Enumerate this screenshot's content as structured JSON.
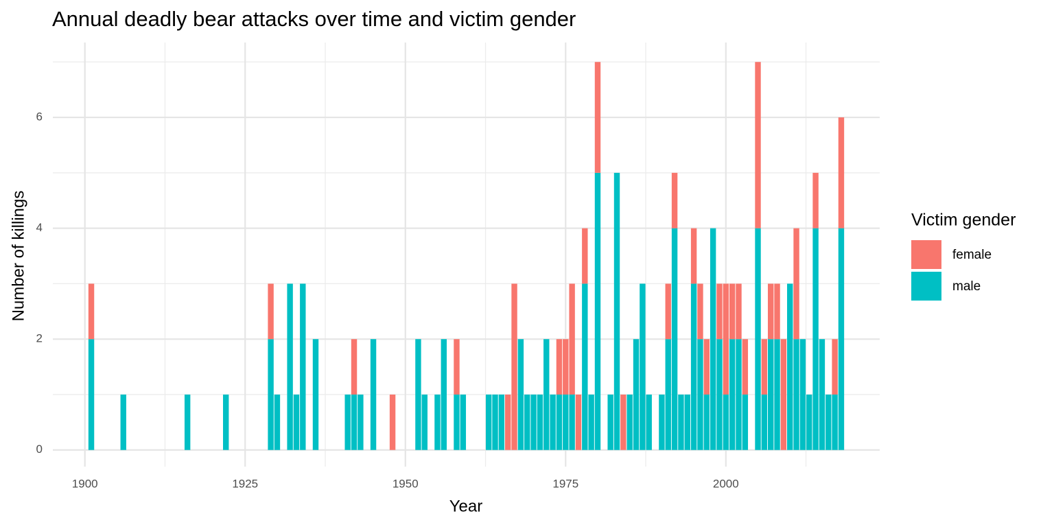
{
  "chart_data": {
    "type": "stacked_bar",
    "title": "Annual deadly bear attacks over time and victim gender",
    "x_label": "Year",
    "y_label": "Number of killings",
    "legend_title": "Victim gender",
    "x": [
      1901,
      1906,
      1916,
      1922,
      1929,
      1930,
      1932,
      1933,
      1934,
      1936,
      1941,
      1942,
      1943,
      1945,
      1948,
      1952,
      1953,
      1955,
      1956,
      1958,
      1959,
      1963,
      1964,
      1965,
      1966,
      1967,
      1968,
      1969,
      1970,
      1971,
      1972,
      1973,
      1974,
      1975,
      1976,
      1977,
      1978,
      1979,
      1980,
      1982,
      1983,
      1984,
      1985,
      1986,
      1987,
      1988,
      1990,
      1991,
      1992,
      1993,
      1994,
      1995,
      1996,
      1997,
      1998,
      1999,
      2000,
      2001,
      2002,
      2003,
      2005,
      2006,
      2007,
      2008,
      2009,
      2010,
      2011,
      2012,
      2013,
      2014,
      2015,
      2016,
      2017,
      2018
    ],
    "series": [
      {
        "name": "female",
        "color": "#f8766d",
        "values": [
          1,
          0,
          0,
          0,
          1,
          0,
          0,
          0,
          0,
          0,
          0,
          1,
          0,
          0,
          1,
          0,
          0,
          0,
          0,
          1,
          0,
          0,
          0,
          0,
          1,
          3,
          0,
          0,
          0,
          0,
          0,
          0,
          1,
          1,
          2,
          1,
          1,
          0,
          2,
          0,
          0,
          1,
          0,
          0,
          0,
          0,
          0,
          1,
          1,
          0,
          0,
          1,
          1,
          1,
          0,
          1,
          2,
          1,
          1,
          1,
          3,
          1,
          1,
          1,
          2,
          0,
          2,
          0,
          0,
          1,
          0,
          0,
          1,
          2
        ]
      },
      {
        "name": "male",
        "color": "#00bfc4",
        "values": [
          2,
          1,
          1,
          1,
          2,
          1,
          3,
          1,
          3,
          2,
          1,
          1,
          1,
          2,
          0,
          2,
          1,
          1,
          2,
          1,
          1,
          1,
          1,
          1,
          0,
          0,
          2,
          1,
          1,
          1,
          2,
          1,
          1,
          1,
          1,
          0,
          3,
          1,
          5,
          1,
          5,
          0,
          1,
          2,
          3,
          1,
          1,
          2,
          4,
          1,
          1,
          3,
          2,
          1,
          4,
          2,
          1,
          2,
          2,
          1,
          4,
          1,
          2,
          2,
          0,
          3,
          2,
          2,
          1,
          4,
          2,
          1,
          1,
          4
        ]
      }
    ],
    "xlim": [
      1895,
      2024
    ],
    "xticks": [
      1900,
      1925,
      1950,
      1975,
      2000
    ],
    "ylim": [
      -0.3,
      7.35
    ],
    "yticks": [
      0,
      2,
      4,
      6
    ],
    "grid": true
  }
}
